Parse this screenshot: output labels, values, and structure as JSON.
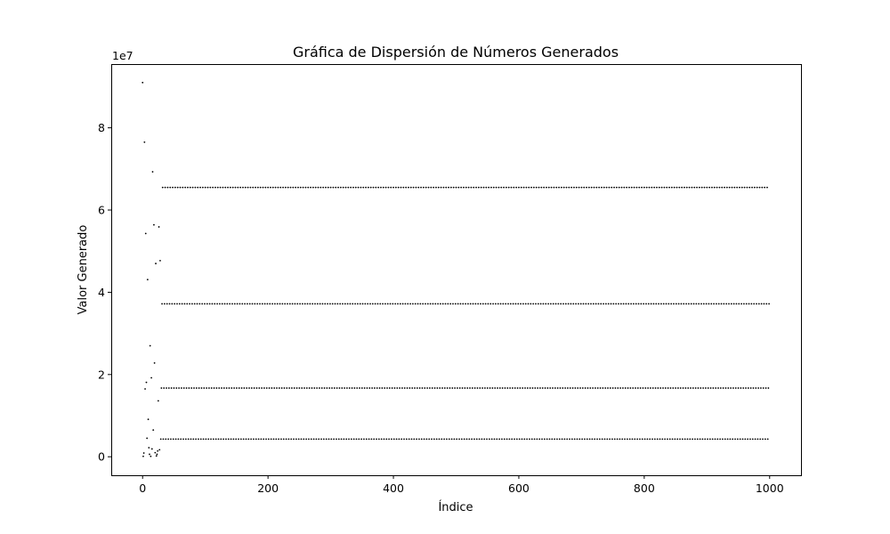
{
  "chart_data": {
    "type": "scatter",
    "title": "Gráfica de Dispersión de Números Generados",
    "xlabel": "Índice",
    "ylabel": "Valor Generado",
    "y_offset_label": "1e7",
    "xlim": [
      -50,
      1050
    ],
    "ylim": [
      -4500000,
      95500000
    ],
    "xticks": [
      0,
      200,
      400,
      600,
      800,
      1000
    ],
    "yticks": [
      0,
      20000000,
      40000000,
      60000000,
      80000000
    ],
    "ytick_labels": [
      "0",
      "2",
      "4",
      "6",
      "8"
    ],
    "grid": false,
    "marker_color": "#000000",
    "early_points": [
      {
        "x": 0,
        "y": 91000000
      },
      {
        "x": 1,
        "y": 100000
      },
      {
        "x": 2,
        "y": 900000
      },
      {
        "x": 3,
        "y": 76500000
      },
      {
        "x": 4,
        "y": 16500000
      },
      {
        "x": 5,
        "y": 54300000
      },
      {
        "x": 6,
        "y": 18100000
      },
      {
        "x": 7,
        "y": 4500000
      },
      {
        "x": 8,
        "y": 43100000
      },
      {
        "x": 9,
        "y": 9100000
      },
      {
        "x": 10,
        "y": 2200000
      },
      {
        "x": 11,
        "y": 600000
      },
      {
        "x": 12,
        "y": 27000000
      },
      {
        "x": 13,
        "y": 100000
      },
      {
        "x": 14,
        "y": 19200000
      },
      {
        "x": 15,
        "y": 1900000
      },
      {
        "x": 16,
        "y": 69300000
      },
      {
        "x": 17,
        "y": 6500000
      },
      {
        "x": 18,
        "y": 56400000
      },
      {
        "x": 19,
        "y": 22800000
      },
      {
        "x": 20,
        "y": 1000000
      },
      {
        "x": 21,
        "y": 47000000
      },
      {
        "x": 22,
        "y": 200000
      },
      {
        "x": 23,
        "y": 600000
      },
      {
        "x": 24,
        "y": 1400000
      },
      {
        "x": 25,
        "y": 13600000
      },
      {
        "x": 26,
        "y": 55900000
      },
      {
        "x": 27,
        "y": 1700000
      },
      {
        "x": 28,
        "y": 47700000
      }
    ],
    "cycle_start": 29,
    "cycle_end": 999,
    "cycle_values": [
      4300000,
      16700000,
      37200000,
      65500000
    ]
  }
}
